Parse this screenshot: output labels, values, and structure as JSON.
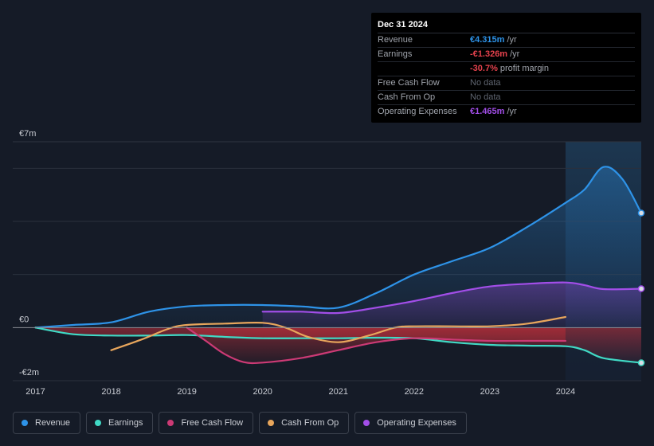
{
  "tooltip": {
    "date": "Dec 31 2024",
    "rows": [
      {
        "label": "Revenue",
        "value": "€4.315m",
        "unit": "/yr",
        "color": "#2e93e8"
      },
      {
        "label": "Earnings",
        "value": "-€1.326m",
        "unit": "/yr",
        "color": "#e5424d"
      },
      {
        "label": "",
        "value": "-30.7%",
        "unit": "profit margin",
        "color": "#e5424d"
      },
      {
        "label": "Free Cash Flow",
        "value": "No data",
        "unit": "",
        "color": "#5f6570"
      },
      {
        "label": "Cash From Op",
        "value": "No data",
        "unit": "",
        "color": "#5f6570"
      },
      {
        "label": "Operating Expenses",
        "value": "€1.465m",
        "unit": "/yr",
        "color": "#a24ee8"
      }
    ]
  },
  "legend": [
    {
      "label": "Revenue",
      "color": "#2e93e8"
    },
    {
      "label": "Earnings",
      "color": "#40d9c5"
    },
    {
      "label": "Free Cash Flow",
      "color": "#cc3a75"
    },
    {
      "label": "Cash From Op",
      "color": "#e8a65c"
    },
    {
      "label": "Operating Expenses",
      "color": "#a24ee8"
    }
  ],
  "chart_data": {
    "type": "line",
    "title": "",
    "xlabel": "",
    "ylabel": "",
    "ylim": [
      -2,
      7
    ],
    "xlim": [
      2016.7,
      2025.0
    ],
    "y_tick_labels": [
      {
        "value": 7,
        "label": "€7m"
      },
      {
        "value": 0,
        "label": "€0"
      },
      {
        "value": -2,
        "label": "-€2m"
      }
    ],
    "x_ticks": [
      2017,
      2018,
      2019,
      2020,
      2021,
      2022,
      2023,
      2024
    ],
    "x_tick_labels": [
      "2017",
      "2018",
      "2019",
      "2020",
      "2021",
      "2022",
      "2023",
      "2024"
    ],
    "highlight_from": 2024.0,
    "series": [
      {
        "name": "Revenue",
        "color": "#2e93e8",
        "fill": true,
        "end_marker": true,
        "x": [
          2017.0,
          2017.5,
          2018.0,
          2018.5,
          2019.0,
          2019.5,
          2020.0,
          2020.5,
          2021.0,
          2021.5,
          2022.0,
          2022.5,
          2023.0,
          2023.5,
          2024.0,
          2024.25,
          2024.5,
          2024.75,
          2025.0
        ],
        "y": [
          0.0,
          0.1,
          0.2,
          0.6,
          0.8,
          0.85,
          0.85,
          0.8,
          0.75,
          1.3,
          2.0,
          2.5,
          3.0,
          3.8,
          4.7,
          5.2,
          6.05,
          5.6,
          4.315
        ]
      },
      {
        "name": "Earnings",
        "color": "#40d9c5",
        "fill": true,
        "end_marker": true,
        "x": [
          2017.0,
          2017.5,
          2018.0,
          2018.5,
          2019.0,
          2019.5,
          2020.0,
          2020.5,
          2021.0,
          2021.5,
          2022.0,
          2022.5,
          2023.0,
          2023.5,
          2024.0,
          2024.25,
          2024.5,
          2025.0
        ],
        "y": [
          0.0,
          -0.25,
          -0.3,
          -0.3,
          -0.28,
          -0.35,
          -0.4,
          -0.4,
          -0.4,
          -0.38,
          -0.4,
          -0.55,
          -0.65,
          -0.68,
          -0.7,
          -0.85,
          -1.15,
          -1.326
        ]
      },
      {
        "name": "Free Cash Flow",
        "color": "#cc3a75",
        "fill": true,
        "end_marker": false,
        "x": [
          2019.0,
          2019.25,
          2019.5,
          2019.75,
          2020.0,
          2020.5,
          2021.0,
          2021.5,
          2022.0,
          2022.5,
          2023.0,
          2023.5,
          2024.0
        ],
        "y": [
          0.0,
          -0.5,
          -1.0,
          -1.3,
          -1.32,
          -1.15,
          -0.85,
          -0.55,
          -0.4,
          -0.45,
          -0.5,
          -0.5,
          -0.5
        ]
      },
      {
        "name": "Cash From Op",
        "color": "#e8a65c",
        "fill": false,
        "end_marker": false,
        "x": [
          2018.0,
          2018.4,
          2018.75,
          2019.0,
          2019.5,
          2020.0,
          2020.3,
          2020.6,
          2021.0,
          2021.4,
          2021.75,
          2022.0,
          2022.5,
          2023.0,
          2023.5,
          2024.0
        ],
        "y": [
          -0.85,
          -0.45,
          -0.05,
          0.1,
          0.15,
          0.18,
          0.0,
          -0.35,
          -0.55,
          -0.3,
          0.0,
          0.05,
          0.05,
          0.05,
          0.15,
          0.4
        ]
      },
      {
        "name": "Operating Expenses",
        "color": "#a24ee8",
        "fill": true,
        "end_marker": true,
        "x": [
          2020.0,
          2020.5,
          2021.0,
          2021.5,
          2022.0,
          2022.5,
          2023.0,
          2023.5,
          2024.0,
          2024.25,
          2024.5,
          2025.0
        ],
        "y": [
          0.6,
          0.6,
          0.55,
          0.75,
          1.0,
          1.3,
          1.55,
          1.65,
          1.7,
          1.6,
          1.45,
          1.465
        ]
      }
    ]
  }
}
